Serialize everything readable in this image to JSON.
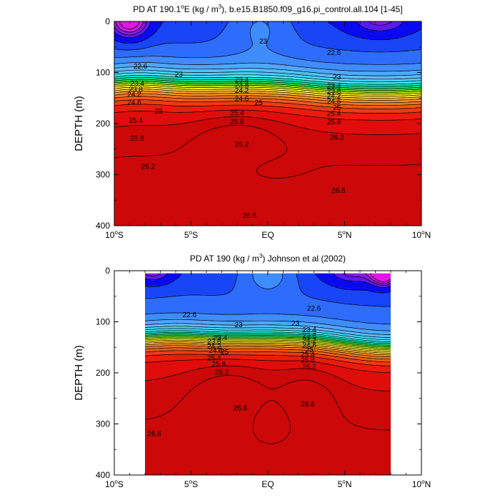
{
  "colors": {
    "contour_line": "#000000",
    "levels": [
      "#e316e6",
      "#c21fd9",
      "#8c18e0",
      "#5b1cf0",
      "#0a0af2",
      "#1945f7",
      "#2e6cfb",
      "#3f8cfd",
      "#4fa8fe",
      "#5bbcfe",
      "#40d3fb",
      "#56e5f2",
      "#00e6cc",
      "#16e08c",
      "#2edc4a",
      "#79e01e",
      "#c8ea10",
      "#f4ec2a",
      "#fcd838",
      "#fbb52c",
      "#f89522",
      "#f7751c",
      "#f25a17",
      "#ee3a12",
      "#ea1c0e",
      "#df0d0b",
      "#cc0808"
    ]
  },
  "chart_data": [
    {
      "type": "contour",
      "title": "PD AT 190.1°E (kg / m³), b.e15.B1850.f09_g16.pi_control.all.104 [1-45]",
      "title_parts": {
        "prefix": "PD AT 190.1",
        "deg": "o",
        "unit_pre": "E (kg / m",
        "sup": "3",
        "unit_post": "), b.e15.B1850.f09_g16.pi_control.all.104 [1-45]"
      },
      "ylabel": "DEPTH (m)",
      "xlim": [
        -10,
        10
      ],
      "ylim": [
        400,
        0
      ],
      "x_ticks": [
        {
          "value": -10,
          "label": "10",
          "sup": "o",
          "suffix": "S"
        },
        {
          "value": -5,
          "label": "5",
          "sup": "o",
          "suffix": "S"
        },
        {
          "value": 0,
          "label": "EQ",
          "sup": "",
          "suffix": ""
        },
        {
          "value": 5,
          "label": "5",
          "sup": "o",
          "suffix": "N"
        },
        {
          "value": 10,
          "label": "10",
          "sup": "o",
          "suffix": "N"
        }
      ],
      "y_ticks": [
        0,
        100,
        200,
        300,
        400
      ],
      "contour_levels": [
        21.7,
        21.8,
        21.9,
        22.0,
        22.2,
        22.4,
        22.6,
        22.8,
        23.0,
        23.2,
        23.4,
        23.6,
        23.8,
        24.0,
        24.2,
        24.4,
        24.6,
        24.8,
        25.0,
        25.2,
        25.4,
        25.6,
        25.8,
        26.0,
        26.2,
        26.4,
        26.6
      ],
      "contour_labels": [
        {
          "text": "23",
          "lat": -0.3,
          "depth": 38
        },
        {
          "text": "22.6",
          "lat": 4.3,
          "depth": 60
        },
        {
          "text": "22.6",
          "lat": -8.3,
          "depth": 87
        },
        {
          "text": "23",
          "lat": -5.8,
          "depth": 103
        },
        {
          "text": "23",
          "lat": 4.5,
          "depth": 108
        },
        {
          "text": "23.4",
          "lat": -8.5,
          "depth": 120
        },
        {
          "text": "23.4",
          "lat": -1.7,
          "depth": 113
        },
        {
          "text": "23.4",
          "lat": 4.3,
          "depth": 125
        },
        {
          "text": "23.8",
          "lat": -8.6,
          "depth": 132
        },
        {
          "text": "23.8",
          "lat": -1.7,
          "depth": 124
        },
        {
          "text": "23.8",
          "lat": 4.3,
          "depth": 136
        },
        {
          "text": "24.2",
          "lat": -8.7,
          "depth": 142
        },
        {
          "text": "24.2",
          "lat": -1.7,
          "depth": 134
        },
        {
          "text": "24.2",
          "lat": 4.3,
          "depth": 145
        },
        {
          "text": "24.6",
          "lat": -8.7,
          "depth": 157
        },
        {
          "text": "24.6",
          "lat": -1.7,
          "depth": 150
        },
        {
          "text": "24.6",
          "lat": 4.3,
          "depth": 155
        },
        {
          "text": "25",
          "lat": -0.6,
          "depth": 158
        },
        {
          "text": "25",
          "lat": 4.5,
          "depth": 168
        },
        {
          "text": "25",
          "lat": -7.1,
          "depth": 175
        },
        {
          "text": "25.4",
          "lat": -2.0,
          "depth": 178
        },
        {
          "text": "25.4",
          "lat": 4.3,
          "depth": 180
        },
        {
          "text": "25.4",
          "lat": -8.6,
          "depth": 193
        },
        {
          "text": "25.8",
          "lat": -2.0,
          "depth": 195
        },
        {
          "text": "25.8",
          "lat": 4.3,
          "depth": 196
        },
        {
          "text": "25.8",
          "lat": -8.5,
          "depth": 228
        },
        {
          "text": "26.2",
          "lat": -1.7,
          "depth": 240
        },
        {
          "text": "26.2",
          "lat": 4.5,
          "depth": 226
        },
        {
          "text": "26.2",
          "lat": -7.8,
          "depth": 283
        },
        {
          "text": "26.6",
          "lat": 4.6,
          "depth": 330
        },
        {
          "text": "26.6",
          "lat": -1.2,
          "depth": 379
        }
      ]
    },
    {
      "type": "contour",
      "title": "PD AT 190 (kg / m³) Johnson et al (2002)",
      "title_parts": {
        "prefix": "PD AT 190 (kg / m",
        "deg": "",
        "unit_pre": "",
        "sup": "3",
        "unit_post": ") Johnson et al (2002)"
      },
      "ylabel": "DEPTH (m)",
      "xlim": [
        -10,
        10
      ],
      "ylim": [
        400,
        0
      ],
      "data_xlim": [
        -8,
        8
      ],
      "data_ylim": [
        5,
        400
      ],
      "x_ticks": [
        {
          "value": -10,
          "label": "10",
          "sup": "o",
          "suffix": "S"
        },
        {
          "value": -5,
          "label": "5",
          "sup": "o",
          "suffix": "S"
        },
        {
          "value": 0,
          "label": "EQ",
          "sup": "",
          "suffix": ""
        },
        {
          "value": 5,
          "label": "5",
          "sup": "o",
          "suffix": "N"
        },
        {
          "value": 10,
          "label": "10",
          "sup": "o",
          "suffix": "N"
        }
      ],
      "y_ticks": [
        0,
        100,
        200,
        300,
        400
      ],
      "contour_levels": [
        21.7,
        21.8,
        21.9,
        22.0,
        22.2,
        22.4,
        22.6,
        22.8,
        23.0,
        23.2,
        23.4,
        23.6,
        23.8,
        24.0,
        24.2,
        24.4,
        24.6,
        24.8,
        25.0,
        25.2,
        25.4,
        25.6,
        25.8,
        26.0,
        26.2,
        26.4,
        26.6
      ],
      "contour_labels": [
        {
          "text": "22.6",
          "lat": -5.1,
          "depth": 85
        },
        {
          "text": "22.6",
          "lat": 3.0,
          "depth": 73
        },
        {
          "text": "23",
          "lat": -1.9,
          "depth": 105
        },
        {
          "text": "23",
          "lat": 1.8,
          "depth": 102
        },
        {
          "text": "23.4",
          "lat": -3.1,
          "depth": 130
        },
        {
          "text": "23.4",
          "lat": 2.7,
          "depth": 115
        },
        {
          "text": "23.8",
          "lat": -3.5,
          "depth": 138
        },
        {
          "text": "23.8",
          "lat": 2.7,
          "depth": 126
        },
        {
          "text": "24.2",
          "lat": -3.5,
          "depth": 147
        },
        {
          "text": "24.2",
          "lat": 2.7,
          "depth": 136
        },
        {
          "text": "24.6",
          "lat": -3.4,
          "depth": 155
        },
        {
          "text": "24.6",
          "lat": 2.7,
          "depth": 145
        },
        {
          "text": "25",
          "lat": -2.8,
          "depth": 158
        },
        {
          "text": "25",
          "lat": 2.7,
          "depth": 154
        },
        {
          "text": "25.4",
          "lat": -3.5,
          "depth": 170
        },
        {
          "text": "25.4",
          "lat": 2.6,
          "depth": 163
        },
        {
          "text": "25.8",
          "lat": -3.2,
          "depth": 182
        },
        {
          "text": "25.8",
          "lat": 2.6,
          "depth": 174
        },
        {
          "text": "26.2",
          "lat": -3.0,
          "depth": 198
        },
        {
          "text": "26.2",
          "lat": 2.7,
          "depth": 187
        },
        {
          "text": "26.6",
          "lat": -1.8,
          "depth": 268
        },
        {
          "text": "26.6",
          "lat": 2.6,
          "depth": 260
        },
        {
          "text": "26.6",
          "lat": -7.4,
          "depth": 318
        }
      ]
    }
  ]
}
